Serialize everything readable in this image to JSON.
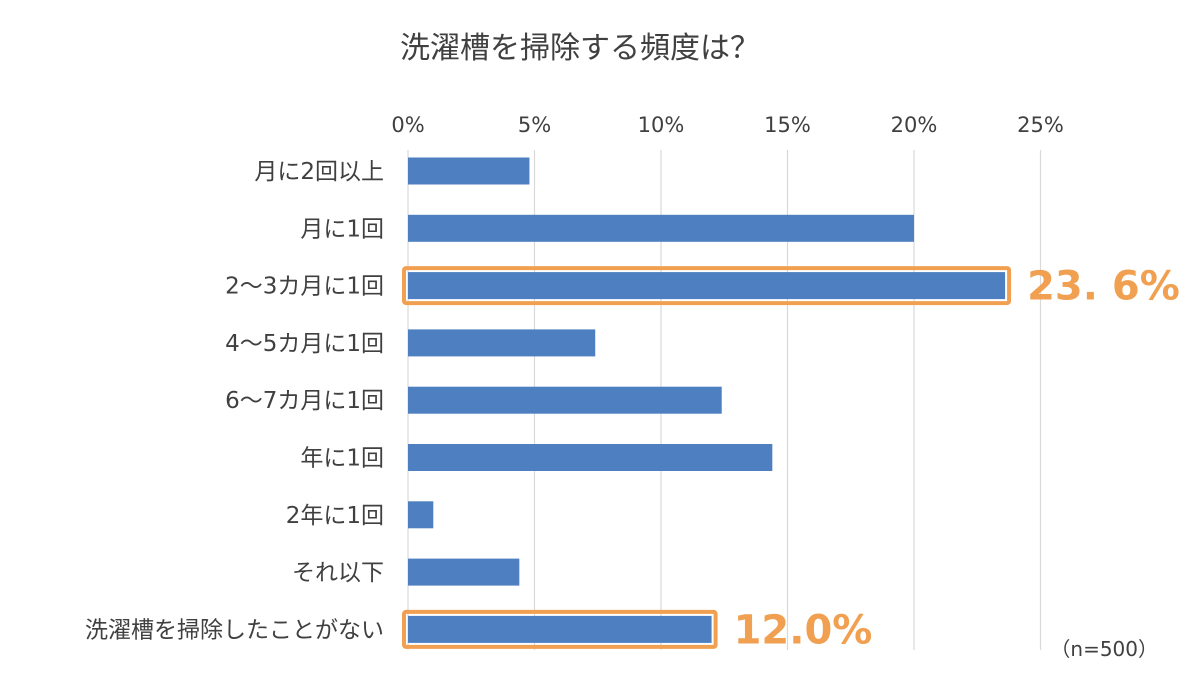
{
  "chart_data": {
    "type": "bar",
    "orientation": "horizontal",
    "title": "洗濯槽を掃除する頻度は？",
    "categories": [
      "月に2回以上",
      "月に1回",
      "2～3カ月に1回",
      "4～5カ月に1回",
      "6～7カ月に1回",
      "年に1回",
      "2年に1回",
      "それ以下",
      "洗濯槽を掃除したことがない"
    ],
    "values": [
      4.8,
      20.0,
      23.6,
      7.4,
      12.4,
      14.4,
      1.0,
      4.4,
      12.0
    ],
    "x_ticks": [
      "0%",
      "5%",
      "10%",
      "15%",
      "20%",
      "25%"
    ],
    "x_tick_values": [
      0,
      5,
      10,
      15,
      20,
      25
    ],
    "xlim": [
      0,
      25
    ],
    "grid": true,
    "highlighted": [
      {
        "category": "2～3カ月に1回",
        "label": "23. 6%"
      },
      {
        "category": "洗濯槽を掃除したことがない",
        "label": "12.0%"
      }
    ],
    "note": "（n=500）",
    "colors": {
      "bar": "#4e7fc0",
      "highlight": "#f0a050",
      "highlight_text": "#f0a050",
      "grid": "#d9d9d9",
      "text": "#404040"
    }
  }
}
